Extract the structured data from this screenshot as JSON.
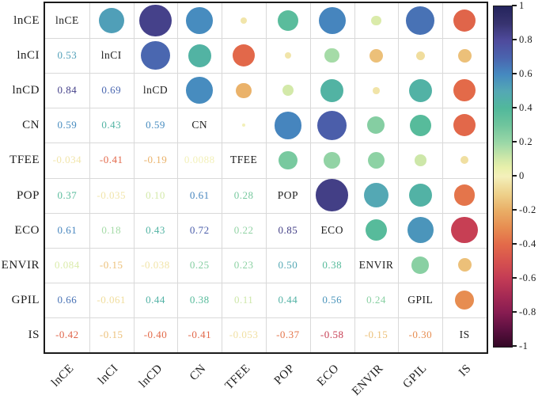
{
  "chart_data": {
    "type": "heatmap",
    "subtype": "correlation-matrix-corrplot",
    "description": "Correlation matrix: lower triangle shows coefficients, diagonal shows variable names, upper triangle shows circles sized/colored by correlation",
    "variables": [
      "lnCE",
      "lnCI",
      "lnCD",
      "CN",
      "TFEE",
      "POP",
      "ECO",
      "ENVIR",
      "GPIL",
      "IS"
    ],
    "lower_triangle": [
      [],
      [
        "0.53"
      ],
      [
        "0.84",
        "0.69"
      ],
      [
        "0.59",
        "0.43",
        "0.59"
      ],
      [
        "-0.034",
        "-0.41",
        "-0.19",
        "0.0088"
      ],
      [
        "0.37",
        "-0.035",
        "0.10",
        "0.61",
        "0.28"
      ],
      [
        "0.61",
        "0.18",
        "0.43",
        "0.72",
        "0.22",
        "0.85"
      ],
      [
        "0.084",
        "-0.15",
        "-0.038",
        "0.25",
        "0.23",
        "0.50",
        "0.38"
      ],
      [
        "0.66",
        "-0.061",
        "0.44",
        "0.38",
        "0.11",
        "0.44",
        "0.56",
        "0.24"
      ],
      [
        "-0.42",
        "-0.15",
        "-0.40",
        "-0.41",
        "-0.053",
        "-0.37",
        "-0.58",
        "-0.15",
        "-0.30"
      ]
    ],
    "colorbar": {
      "min": -1,
      "max": 1,
      "tick_labels": [
        "1",
        "0.8",
        "0.6",
        "0.4",
        "0.2",
        "0",
        "-0.2",
        "-0.4",
        "-0.6",
        "-0.8",
        "-1"
      ]
    },
    "colormap_stops": [
      {
        "v": -1.0,
        "color": "#330826"
      },
      {
        "v": -0.9,
        "color": "#5c1040"
      },
      {
        "v": -0.8,
        "color": "#871c51"
      },
      {
        "v": -0.7,
        "color": "#a62a54"
      },
      {
        "v": -0.6,
        "color": "#c33b55"
      },
      {
        "v": -0.5,
        "color": "#d6514f"
      },
      {
        "v": -0.4,
        "color": "#e36a49"
      },
      {
        "v": -0.3,
        "color": "#e78d51"
      },
      {
        "v": -0.2,
        "color": "#e9ae66"
      },
      {
        "v": -0.1,
        "color": "#eed28c"
      },
      {
        "v": -0.05,
        "color": "#f0e0a2"
      },
      {
        "v": 0.0,
        "color": "#f4f0bb"
      },
      {
        "v": 0.05,
        "color": "#e9f0ab"
      },
      {
        "v": 0.1,
        "color": "#d3e9a9"
      },
      {
        "v": 0.2,
        "color": "#9ad7a7"
      },
      {
        "v": 0.3,
        "color": "#70c59d"
      },
      {
        "v": 0.4,
        "color": "#51b89b"
      },
      {
        "v": 0.5,
        "color": "#54a8b4"
      },
      {
        "v": 0.6,
        "color": "#4589c0"
      },
      {
        "v": 0.7,
        "color": "#4a63ae"
      },
      {
        "v": 0.8,
        "color": "#4e4a9c"
      },
      {
        "v": 0.9,
        "color": "#37336f"
      },
      {
        "v": 1.0,
        "color": "#24245c"
      }
    ],
    "grid_color": "#d9d9d9",
    "border_color": "#1b1b1b"
  }
}
